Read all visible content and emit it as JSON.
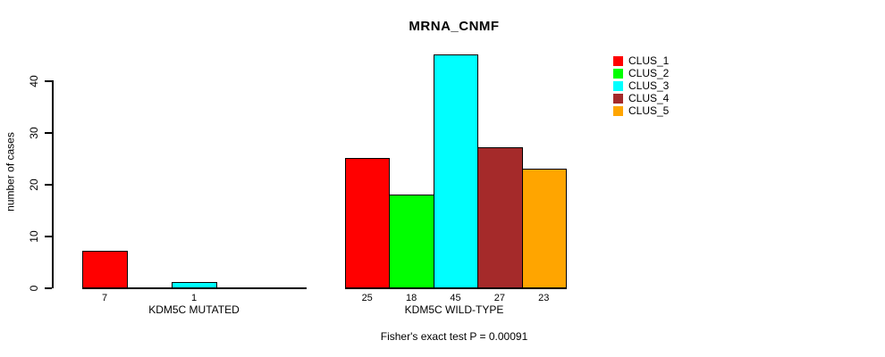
{
  "chart_data": {
    "type": "bar",
    "title": "MRNA_CNMF",
    "ylabel": "number of cases",
    "yticks": [
      0,
      10,
      20,
      30,
      40
    ],
    "ylim": [
      0,
      45
    ],
    "grid": false,
    "legend_position": "top-right",
    "legend": [
      "CLUS_1",
      "CLUS_2",
      "CLUS_3",
      "CLUS_4",
      "CLUS_5"
    ],
    "series_colors": [
      "#ff0000",
      "#00ff00",
      "#00ffff",
      "#a52a2a",
      "#ffa500"
    ],
    "groups": [
      {
        "label": "KDM5C MUTATED",
        "values": [
          7,
          0,
          1,
          0,
          0
        ],
        "bar_labels": [
          "7",
          "",
          "1",
          "",
          ""
        ]
      },
      {
        "label": "KDM5C WILD-TYPE",
        "values": [
          25,
          18,
          45,
          27,
          23
        ],
        "bar_labels": [
          "25",
          "18",
          "45",
          "27",
          "23"
        ]
      }
    ],
    "annotation": "Fisher's exact test P = 0.00091"
  }
}
